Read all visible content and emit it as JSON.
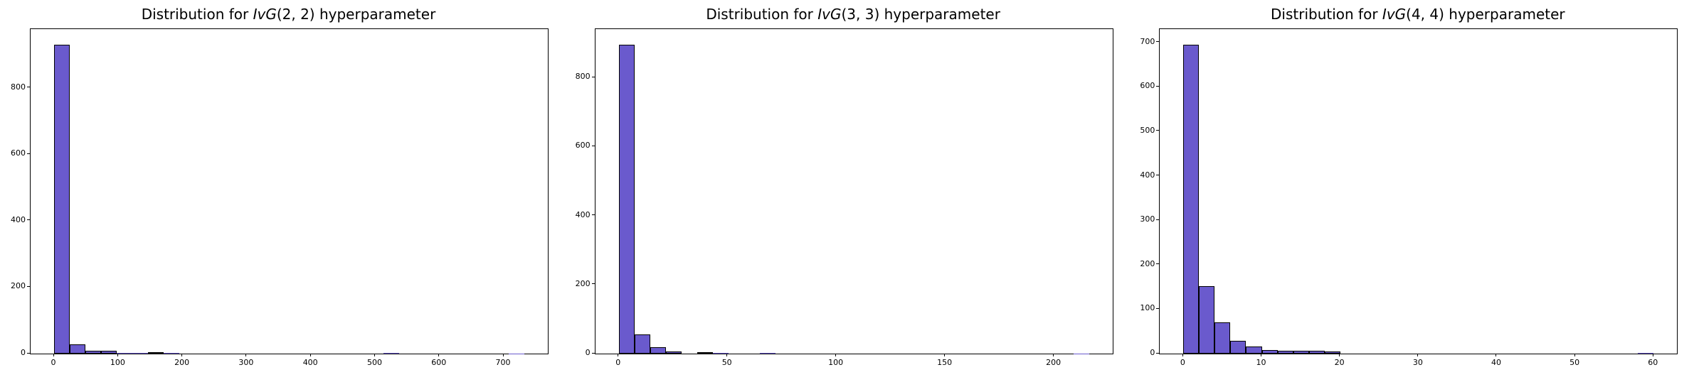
{
  "figure": {
    "background_color": "#ffffff",
    "bar_fill_color": "#6A5ACD",
    "bar_edge_color": "#000000",
    "axis_color": "#000000",
    "text_color": "#000000"
  },
  "chart_data": [
    {
      "type": "bar",
      "subtype": "histogram",
      "title": {
        "prefix": "Distribution for ",
        "math_italic": "IvG",
        "args": "(2, 2)",
        "suffix": " hyperparameter"
      },
      "xlabel": "",
      "ylabel": "",
      "bin_start": 0,
      "bin_width": 24.4,
      "counts": [
        930,
        28,
        9,
        8,
        2,
        2,
        5,
        2,
        0,
        0,
        0,
        0,
        0,
        0,
        0,
        0,
        0,
        0,
        0,
        0,
        0,
        3,
        0,
        0,
        0,
        0,
        0,
        0,
        0,
        1
      ],
      "x_ticks": [
        0,
        100,
        200,
        300,
        400,
        500,
        600,
        700
      ],
      "y_ticks": [
        0,
        200,
        400,
        600,
        800
      ],
      "xlim": [
        -36.6,
        768.6
      ],
      "ylim": [
        0,
        977
      ],
      "grid": false,
      "legend": null
    },
    {
      "type": "bar",
      "subtype": "histogram",
      "title": {
        "prefix": "Distribution for ",
        "math_italic": "IvG",
        "args": "(3, 3)",
        "suffix": " hyperparameter"
      },
      "xlabel": "",
      "ylabel": "",
      "bin_start": 0,
      "bin_width": 7.2,
      "counts": [
        895,
        55,
        18,
        7,
        0,
        5,
        2,
        0,
        0,
        3,
        0,
        0,
        0,
        0,
        0,
        0,
        0,
        0,
        0,
        0,
        0,
        0,
        0,
        0,
        0,
        0,
        0,
        0,
        0,
        1
      ],
      "x_ticks": [
        0,
        50,
        100,
        150,
        200
      ],
      "y_ticks": [
        0,
        200,
        400,
        600,
        800
      ],
      "xlim": [
        -10.8,
        226.8
      ],
      "ylim": [
        0,
        940
      ],
      "grid": false,
      "legend": null
    },
    {
      "type": "bar",
      "subtype": "histogram",
      "title": {
        "prefix": "Distribution for ",
        "math_italic": "IvG",
        "args": "(4, 4)",
        "suffix": " hyperparameter"
      },
      "xlabel": "",
      "ylabel": "",
      "bin_start": 0,
      "bin_width": 2,
      "counts": [
        695,
        152,
        71,
        29,
        16,
        8,
        6,
        6,
        7,
        5,
        0,
        0,
        0,
        0,
        0,
        0,
        0,
        0,
        0,
        0,
        0,
        0,
        0,
        0,
        0,
        0,
        0,
        0,
        0,
        1
      ],
      "x_ticks": [
        0,
        10,
        20,
        30,
        40,
        50,
        60
      ],
      "y_ticks": [
        0,
        100,
        200,
        300,
        400,
        500,
        600,
        700
      ],
      "xlim": [
        -3,
        63
      ],
      "ylim": [
        0,
        730
      ],
      "grid": false,
      "legend": null
    }
  ]
}
